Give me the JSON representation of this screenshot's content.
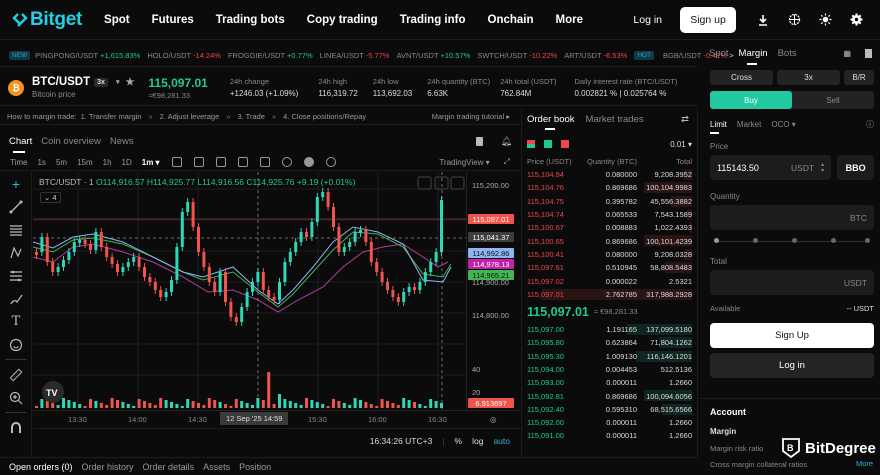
{
  "nav": {
    "brand": "Bitget",
    "items": [
      "Spot",
      "Futures",
      "Trading bots",
      "Copy trading",
      "Trading info",
      "Onchain",
      "More"
    ],
    "login": "Log in",
    "signup": "Sign up",
    "icons": [
      "download-icon",
      "globe-icon",
      "theme-icon",
      "settings-icon"
    ]
  },
  "ticker": {
    "new_tag": "NEW",
    "hot_tag": "HOT",
    "items": [
      {
        "pair": "PINGPONG/USDT",
        "change": "+1,615.83%",
        "dir": "up"
      },
      {
        "pair": "HOLO/USDT",
        "change": "-14.24%",
        "dir": "dn"
      },
      {
        "pair": "FROGGIE/USDT",
        "change": "+0.77%",
        "dir": "up"
      },
      {
        "pair": "LINEA/USDT",
        "change": "-5.77%",
        "dir": "dn"
      },
      {
        "pair": "AVNT/USDT",
        "change": "+10.57%",
        "dir": "up"
      },
      {
        "pair": "SWTCH/USDT",
        "change": "-10.22%",
        "dir": "dn"
      },
      {
        "pair": "ART/USDT",
        "change": "-6.53%",
        "dir": "dn"
      },
      {
        "pair": "BGB/USDT",
        "change": "-0.41%",
        "dir": "dn"
      }
    ],
    "more": ">"
  },
  "pair": {
    "symbol": "BTC/USDT",
    "leverage": "3x",
    "subtitle": "Bitcoin price",
    "last_price": "115,097.01",
    "last_price_eur": "≈€98,281.33",
    "stats": [
      {
        "label": "24h change",
        "value": "+1246.03 (+1.09%)",
        "dir": "up"
      },
      {
        "label": "24h high",
        "value": "116,319.72"
      },
      {
        "label": "24h low",
        "value": "113,692.03"
      },
      {
        "label": "24h quantity (BTC)",
        "value": "6.63K"
      },
      {
        "label": "24h total (USDT)",
        "value": "762.84M"
      },
      {
        "label": "Daily interest rate (BTC/USDT)",
        "value": "0.002821 % | 0.025764 %"
      }
    ]
  },
  "howto": {
    "intro": "How to margin trade:",
    "steps": [
      "1. Transfer margin",
      "2. Adjust leverage",
      "3. Trade",
      "4. Close positions/Repay"
    ],
    "sep": "»",
    "tutorial": "Margin trading tutorial ▸"
  },
  "chart_tabs": [
    "Chart",
    "Coin overview",
    "News"
  ],
  "chart_toolbar": {
    "intervals": [
      "Time",
      "1s",
      "5m",
      "15m",
      "1h",
      "1D"
    ],
    "selected": "1m ▾",
    "provider": "TradingView ▾"
  },
  "chart": {
    "legend_symbol": "BTC/USDT · 1",
    "o": "O114,916.57",
    "h": "H114,925.77",
    "l": "L114,916.56",
    "c": "C114,925.76",
    "chg": "+9.19 (+0.01%)",
    "indicators_count": "⌄ 4",
    "price_labels": [
      "115,200.00",
      "114,900.00",
      "114,800.00",
      "40",
      "20"
    ],
    "price_tags": [
      {
        "value": "115,097.01",
        "bg": "#f0544b",
        "color": "#fff"
      },
      {
        "value": "115,041.37",
        "bg": "#3d3d3d",
        "color": "#fff"
      },
      {
        "value": "114,992.86",
        "bg": "#8fb4f0",
        "color": "#111"
      },
      {
        "value": "114,978.13",
        "bg": "#c41fa9",
        "color": "#fff"
      },
      {
        "value": "114,965.21",
        "bg": "#3fb553",
        "color": "#111"
      },
      {
        "value": "6.913697",
        "bg": "#f0544b",
        "color": "#fff"
      }
    ],
    "time_labels": [
      "13:30",
      "14:00",
      "14:30",
      "15:30",
      "16:00",
      "16:30"
    ],
    "crosshair_time": "12 Sep '25   14:59",
    "clock": "16:34:26 UTC+3",
    "pct": "%",
    "log": "log",
    "auto": "auto"
  },
  "chart_data": {
    "type": "candlestick",
    "title": "BTC/USDT · 1",
    "xlabel": "",
    "ylabel": "Price (USDT)",
    "x_ticks": [
      "13:30",
      "14:00",
      "14:30",
      "15:30",
      "16:00",
      "16:30"
    ],
    "ylim": [
      114700,
      115250
    ],
    "y_ticks": [
      115200,
      114900,
      114800
    ],
    "last_price": 115097.01,
    "ma_values": [
      115041.37,
      114992.86,
      114978.13,
      114965.21
    ],
    "volume_last": 6.913697
  },
  "bottom_tabs": [
    "Open orders (0)",
    "Order history",
    "Order details",
    "Assets",
    "Position"
  ],
  "orderbook": {
    "tabs": [
      "Order book",
      "Market trades"
    ],
    "precision": "0.01 ▾",
    "headers": [
      "Price (USDT)",
      "Quantity (BTC)",
      "Total"
    ],
    "asks": [
      [
        "115,104.94",
        "0.080000",
        "9,208.3952",
        0.05
      ],
      [
        "115,104.76",
        "0.869686",
        "100,104.9983",
        0.32
      ],
      [
        "115,104.75",
        "0.395782",
        "45,556.3882",
        0.14
      ],
      [
        "115,104.74",
        "0.065533",
        "7,543.1589",
        0.03
      ],
      [
        "115,100.67",
        "0.008883",
        "1,022.4393",
        0.01
      ],
      [
        "115,100.65",
        "0.869686",
        "100,101.4239",
        0.32
      ],
      [
        "115,100.41",
        "0.080000",
        "9,208.0328",
        0.05
      ],
      [
        "115,097.61",
        "0.510945",
        "58,808.5483",
        0.18
      ],
      [
        "115,097.02",
        "0.000022",
        "2.5321",
        0.0
      ],
      [
        "115,097.01",
        "2.762785",
        "317,988.2928",
        1.0
      ]
    ],
    "mid_price": "115,097.01",
    "mid_eur": "≈ €98,281.33",
    "bids": [
      [
        "115,097.00",
        "1.191165",
        "137,099.5180",
        0.43
      ],
      [
        "115,095.80",
        "0.623864",
        "71,804.1262",
        0.22
      ],
      [
        "115,095.30",
        "1.009130",
        "116,146.1201",
        0.37
      ],
      [
        "115,094.00",
        "0.004453",
        "512.5136",
        0.0
      ],
      [
        "115,093.00",
        "0.000011",
        "1.2660",
        0.0
      ],
      [
        "115,092.81",
        "0.869686",
        "100,094.6056",
        0.32
      ],
      [
        "115,092.40",
        "0.595310",
        "68,515.6566",
        0.2
      ],
      [
        "115,092.00",
        "0.000011",
        "1.2660",
        0.0
      ],
      [
        "115,091.00",
        "0.000011",
        "1.2660",
        0.0
      ]
    ]
  },
  "trade": {
    "tabs": [
      "Spot",
      "Margin",
      "Bots"
    ],
    "mode": "Cross",
    "leverage": "3x",
    "br": "B/R",
    "buy": "Buy",
    "sell": "Sell",
    "order_types": [
      "Limit",
      "Market",
      "OCO ▾"
    ],
    "price_label": "Price",
    "price_value": "115143.50",
    "price_unit": "USDT",
    "bbo": "BBO",
    "qty_label": "Quantity",
    "qty_unit": "BTC",
    "total_label": "Total",
    "total_unit": "USDT",
    "available_label": "Available",
    "available_value": "-- USDT",
    "signup": "Sign Up",
    "login": "Log in"
  },
  "account": {
    "title": "Account",
    "margin": "Margin",
    "risk": "Margin risk ratio",
    "collateral": "Cross margin collateral ratios",
    "more": "More"
  },
  "watermark": "BitDegree"
}
